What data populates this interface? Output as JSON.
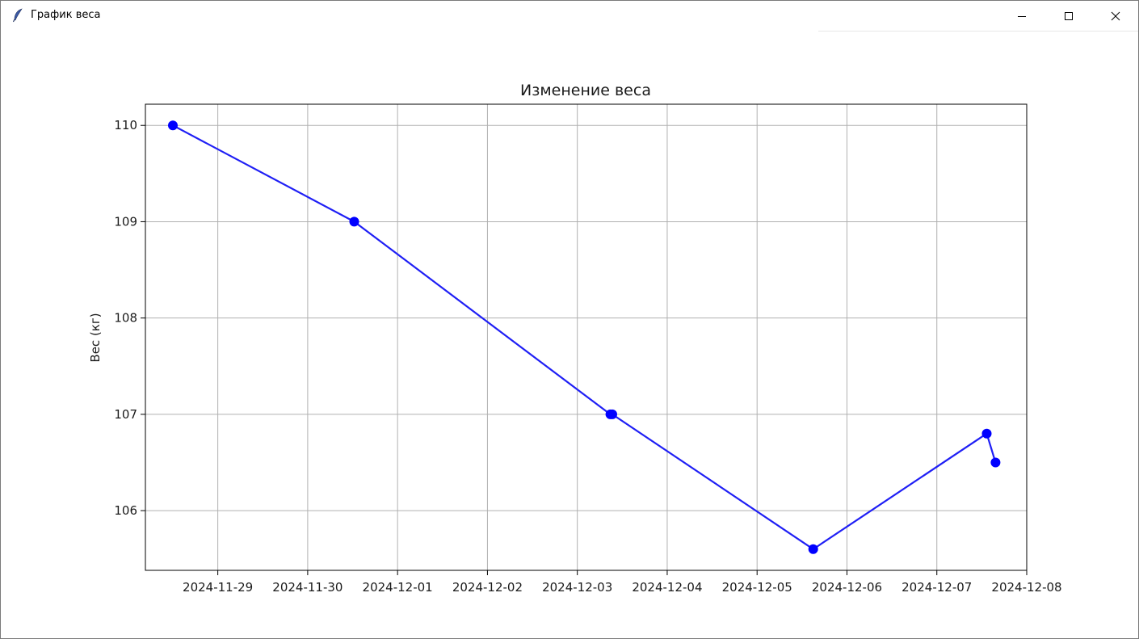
{
  "window": {
    "title": "График веса",
    "icon": "feather-icon",
    "controls": [
      "minimize-icon",
      "maximize-icon",
      "close-icon"
    ]
  },
  "colors": {
    "line": "#1f1ff5",
    "marker": "#0000ff",
    "grid": "#b0b0b0",
    "axes": "#000000"
  },
  "chart_data": {
    "type": "line",
    "title": "Изменение веса",
    "xlabel": "",
    "ylabel": "Вес (кг)",
    "grid": true,
    "x_type": "date",
    "xlim": [
      "2024-11-28T04:40",
      "2024-12-08T00:00"
    ],
    "ylim": [
      105.38,
      110.22
    ],
    "x_ticks": [
      "2024-11-29",
      "2024-11-30",
      "2024-12-01",
      "2024-12-02",
      "2024-12-03",
      "2024-12-04",
      "2024-12-05",
      "2024-12-06",
      "2024-12-07",
      "2024-12-08"
    ],
    "y_ticks": [
      106,
      107,
      108,
      109,
      110
    ],
    "series": [
      {
        "marker": "circle",
        "points": [
          {
            "x": "2024-11-28T12:00",
            "y": 110.0
          },
          {
            "x": "2024-11-30T12:25",
            "y": 109.0
          },
          {
            "x": "2024-12-03T08:50",
            "y": 107.0
          },
          {
            "x": "2024-12-03T09:20",
            "y": 107.0
          },
          {
            "x": "2024-12-05T15:00",
            "y": 105.6
          },
          {
            "x": "2024-12-07T13:20",
            "y": 106.8
          },
          {
            "x": "2024-12-07T15:40",
            "y": 106.5
          }
        ]
      }
    ]
  }
}
